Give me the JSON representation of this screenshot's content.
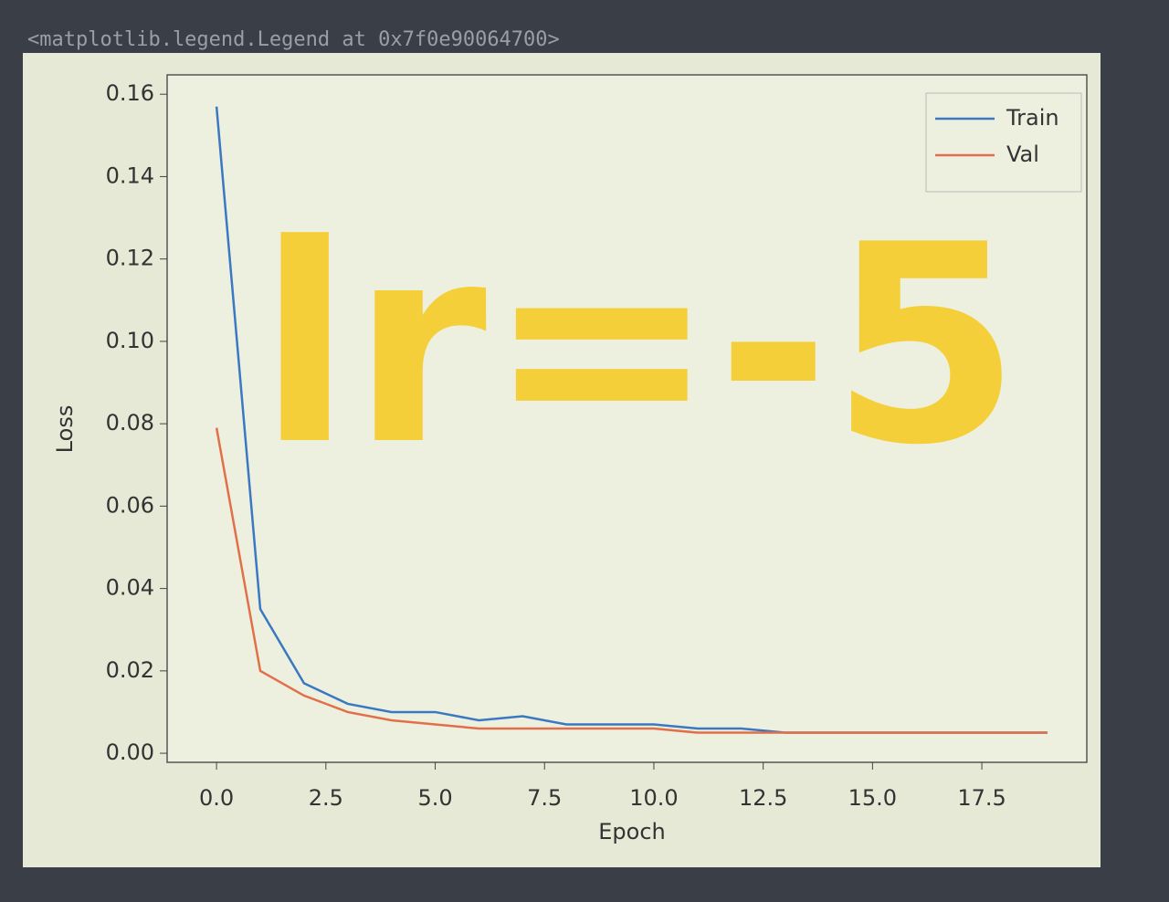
{
  "header": {
    "text": "<matplotlib.legend.Legend at 0x7f0e90064700>"
  },
  "chart_data": {
    "type": "line",
    "xlabel": "Epoch",
    "ylabel": "Loss",
    "annotation": "lr=-5",
    "x": [
      0,
      1,
      2,
      3,
      4,
      5,
      6,
      7,
      8,
      9,
      10,
      11,
      12,
      13,
      14,
      15,
      16,
      17,
      18,
      19
    ],
    "series": [
      {
        "name": "Train",
        "color": "#3b78c2",
        "values": [
          0.157,
          0.035,
          0.017,
          0.012,
          0.01,
          0.01,
          0.008,
          0.009,
          0.007,
          0.007,
          0.007,
          0.006,
          0.006,
          0.005,
          0.005,
          0.005,
          0.005,
          0.005,
          0.005,
          0.005
        ]
      },
      {
        "name": "Val",
        "color": "#e0704a",
        "values": [
          0.079,
          0.02,
          0.014,
          0.01,
          0.008,
          0.007,
          0.006,
          0.006,
          0.006,
          0.006,
          0.006,
          0.005,
          0.005,
          0.005,
          0.005,
          0.005,
          0.005,
          0.005,
          0.005,
          0.005
        ]
      }
    ],
    "xlim": [
      -1.13,
      19.9
    ],
    "ylim": [
      -0.0022,
      0.1647
    ],
    "xticks": [
      {
        "value": 0,
        "label": "0.0"
      },
      {
        "value": 2.5,
        "label": "2.5"
      },
      {
        "value": 5,
        "label": "5.0"
      },
      {
        "value": 7.5,
        "label": "7.5"
      },
      {
        "value": 10,
        "label": "10.0"
      },
      {
        "value": 12.5,
        "label": "12.5"
      },
      {
        "value": 15,
        "label": "15.0"
      },
      {
        "value": 17.5,
        "label": "17.5"
      }
    ],
    "yticks": [
      {
        "value": 0,
        "label": "0.00"
      },
      {
        "value": 0.02,
        "label": "0.02"
      },
      {
        "value": 0.04,
        "label": "0.04"
      },
      {
        "value": 0.06,
        "label": "0.06"
      },
      {
        "value": 0.08,
        "label": "0.08"
      },
      {
        "value": 0.1,
        "label": "0.10"
      },
      {
        "value": 0.12,
        "label": "0.12"
      },
      {
        "value": 0.14,
        "label": "0.14"
      },
      {
        "value": 0.16,
        "label": "0.16"
      }
    ],
    "legend": "upper right"
  }
}
